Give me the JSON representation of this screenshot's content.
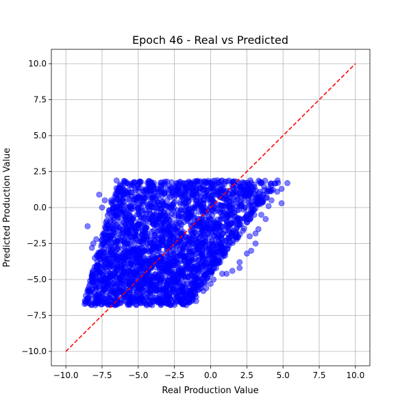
{
  "chart_data": {
    "type": "scatter",
    "title": "Epoch 46 - Real vs Predicted",
    "xlabel": "Real Production Value",
    "ylabel": "Predicted Production Value",
    "xlim": [
      -11,
      11
    ],
    "ylim": [
      -11,
      11
    ],
    "x_ticks": [
      -10.0,
      -7.5,
      -5.0,
      -2.5,
      0.0,
      2.5,
      5.0,
      7.5,
      10.0
    ],
    "y_ticks": [
      -10.0,
      -7.5,
      -5.0,
      -2.5,
      0.0,
      2.5,
      5.0,
      7.5,
      10.0
    ],
    "x_tick_labels": [
      "−10.0",
      "−7.5",
      "−5.0",
      "−2.5",
      "0.0",
      "2.5",
      "5.0",
      "7.5",
      "10.0"
    ],
    "y_tick_labels": [
      "−10.0",
      "−7.5",
      "−5.0",
      "−2.5",
      "0.0",
      "2.5",
      "5.0",
      "7.5",
      "10.0"
    ],
    "grid": true,
    "series": [
      {
        "kind": "scatter",
        "color": "#0000ff",
        "alpha": 0.5,
        "point_cloud": {
          "description_range_y": [
            -6.8,
            1.9
          ],
          "lower_left_x_range": [
            -8.8,
            -1.5
          ],
          "upper_right_x_range": [
            -6.5,
            4.8
          ]
        },
        "outliers": [
          [
            -8.5,
            -1.3
          ],
          [
            -7.7,
            0.9
          ],
          [
            -7.3,
            0.5
          ],
          [
            -6.2,
            1.3
          ],
          [
            -7.5,
            0.0
          ],
          [
            -7.0,
            -0.2
          ],
          [
            -6.5,
            0.6
          ],
          [
            -8.1,
            -2.5
          ],
          [
            -7.9,
            -2.2
          ],
          [
            -7.2,
            -1.2
          ],
          [
            -6.9,
            -0.9
          ],
          [
            -4.0,
            1.6
          ],
          [
            -3.0,
            1.8
          ],
          [
            -1.9,
            1.7
          ],
          [
            5.3,
            1.7
          ],
          [
            4.9,
            1.3
          ],
          [
            4.6,
            1.1
          ],
          [
            4.2,
            0.5
          ],
          [
            4.9,
            0.3
          ],
          [
            4.0,
            0.1
          ],
          [
            3.5,
            -0.5
          ],
          [
            3.8,
            -0.8
          ],
          [
            3.3,
            -1.5
          ],
          [
            3.1,
            -1.8
          ],
          [
            2.7,
            -2.0
          ],
          [
            3.1,
            -2.5
          ],
          [
            2.8,
            -3.0
          ],
          [
            2.5,
            -3.2
          ],
          [
            2.0,
            -3.8
          ],
          [
            2.0,
            -4.2
          ],
          [
            1.5,
            -4.4
          ],
          [
            1.1,
            -4.6
          ],
          [
            0.8,
            -4.6
          ],
          [
            0.2,
            -5.0
          ],
          [
            0.0,
            -5.3
          ],
          [
            -0.3,
            -5.6
          ],
          [
            -0.5,
            -5.8
          ],
          [
            -1.0,
            -6.2
          ],
          [
            -1.0,
            -6.5
          ],
          [
            -1.6,
            -6.4
          ],
          [
            -2.0,
            -6.6
          ],
          [
            -3.0,
            -6.7
          ],
          [
            -2.4,
            -6.5
          ],
          [
            -8.5,
            -6.5
          ],
          [
            -8.7,
            -6.7
          ],
          [
            -8.2,
            -4.8
          ],
          [
            -8.4,
            -5.5
          ],
          [
            -8.0,
            -3.5
          ],
          [
            -8.2,
            -2.8
          ]
        ]
      },
      {
        "kind": "line",
        "style": "dashed",
        "color": "#ff0000",
        "x": [
          -10,
          10
        ],
        "y": [
          -10,
          10
        ]
      }
    ]
  }
}
